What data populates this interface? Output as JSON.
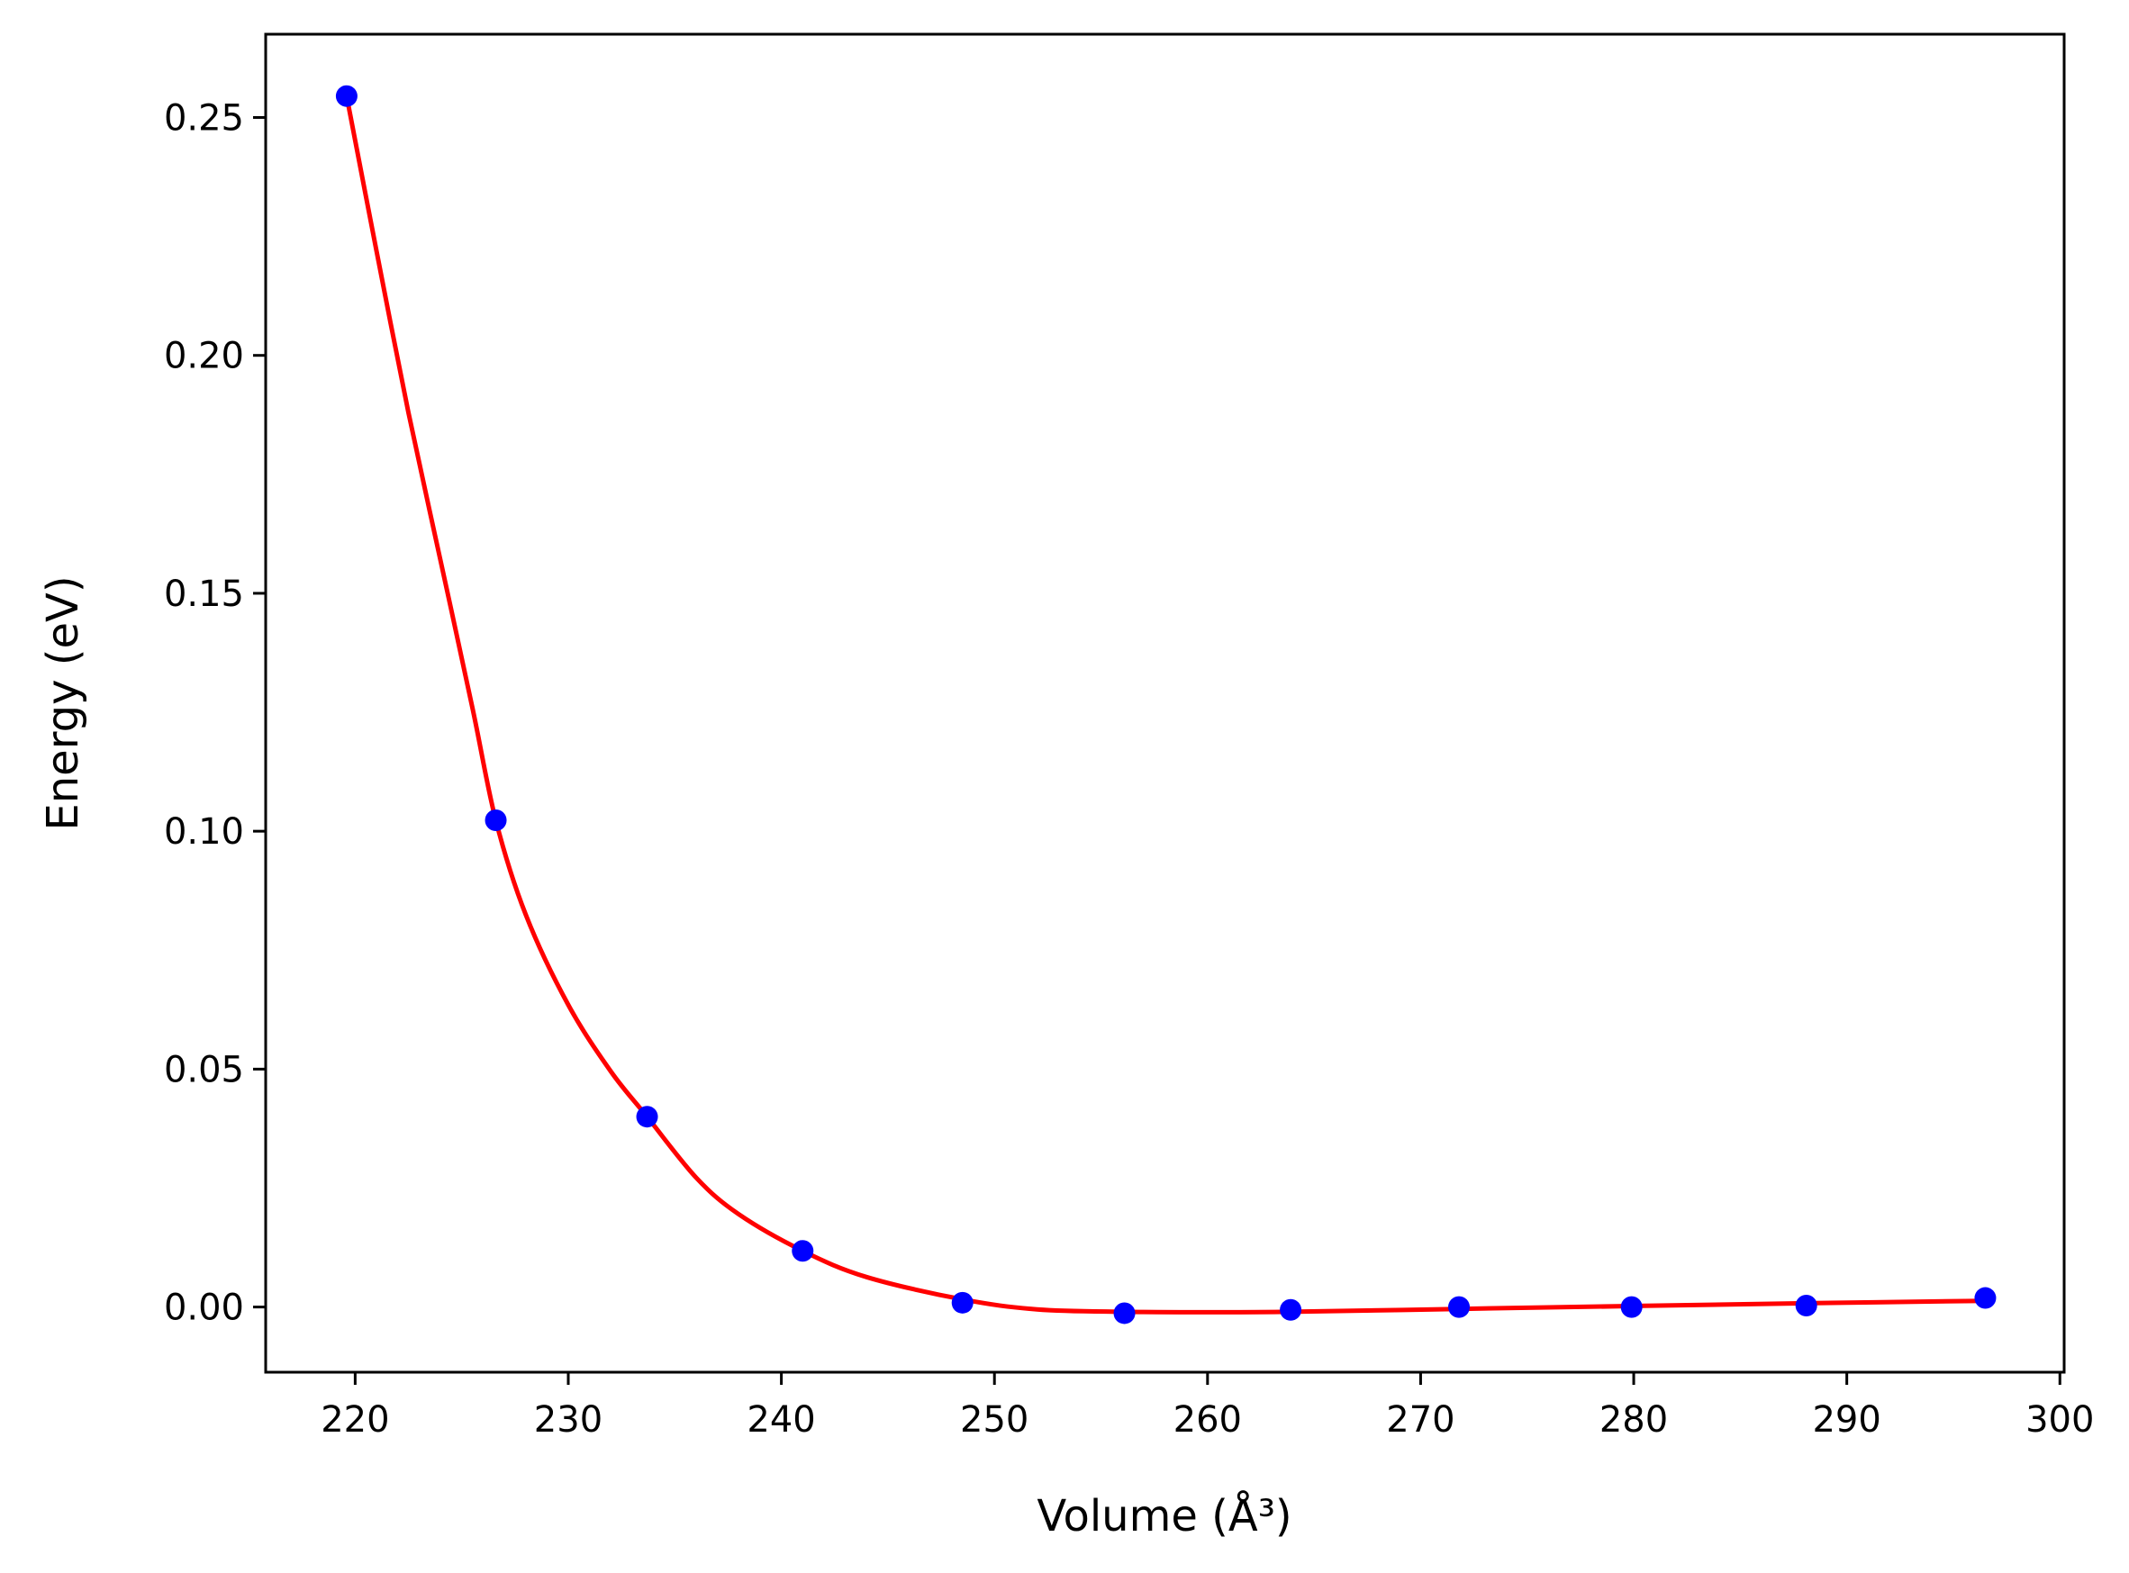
{
  "chart_data": {
    "type": "scatter",
    "title": "",
    "xlabel": "Volume (Å³)",
    "ylabel": "Energy (eV)",
    "xlim": [
      215.8,
      300.2
    ],
    "ylim": [
      -0.0137,
      0.2675
    ],
    "xticks": [
      220,
      230,
      240,
      250,
      260,
      270,
      280,
      290,
      300
    ],
    "xtick_labels": [
      "220",
      "230",
      "240",
      "250",
      "260",
      "270",
      "280",
      "290",
      "300"
    ],
    "yticks": [
      0.0,
      0.05,
      0.1,
      0.15,
      0.2,
      0.25
    ],
    "ytick_labels": [
      "0.00",
      "0.05",
      "0.10",
      "0.15",
      "0.20",
      "0.25"
    ],
    "grid": false,
    "legend": null,
    "series": [
      {
        "kind": "scatter",
        "color": "#0000ff",
        "x": [
          219.6,
          226.6,
          233.7,
          241.0,
          248.5,
          256.1,
          263.9,
          271.8,
          279.9,
          288.1,
          296.5
        ],
        "y": [
          0.2545,
          0.1023,
          0.04,
          0.0118,
          0.0009,
          -0.0013,
          -0.0006,
          0.0,
          0.0,
          0.0003,
          0.0019
        ]
      },
      {
        "kind": "line",
        "color": "#ff0000",
        "x": [
          219.6,
          221.0,
          222.5,
          224.0,
          225.5,
          226.6,
          228.0,
          230.0,
          232.0,
          233.7,
          236.0,
          238.0,
          241.0,
          244.0,
          248.5,
          252.0,
          256.1,
          260.0,
          263.9,
          271.8,
          279.9,
          288.1,
          296.5
        ],
        "y": [
          0.2545,
          0.222,
          0.188,
          0.157,
          0.126,
          0.1023,
          0.0825,
          0.0635,
          0.0495,
          0.04,
          0.0272,
          0.0195,
          0.0118,
          0.0063,
          0.0016,
          -0.0005,
          -0.001,
          -0.0011,
          -0.001,
          -0.0004,
          0.0002,
          0.0008,
          0.0013
        ]
      }
    ]
  }
}
